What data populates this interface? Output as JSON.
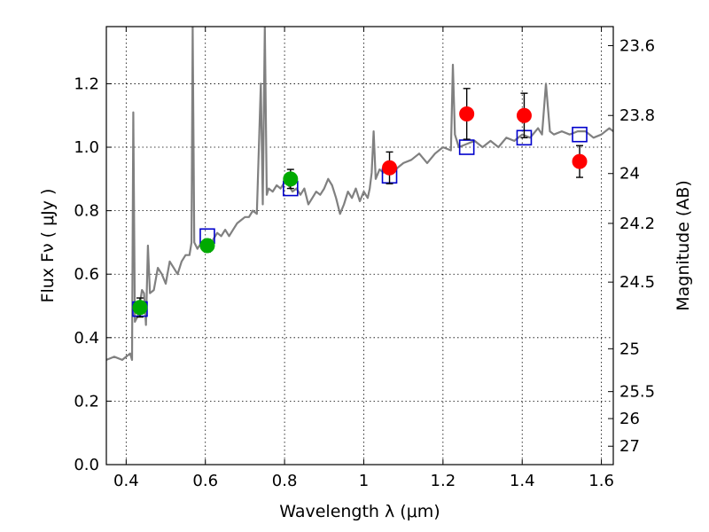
{
  "chart_data": {
    "type": "scatter",
    "xlabel": "Wavelength  λ (μm)",
    "ylabel": "Flux  Fν  ( μJy )",
    "y2label": "Magnitude (AB)",
    "xlim": [
      0.35,
      1.63
    ],
    "ylim": [
      0.0,
      1.38
    ],
    "grid": true,
    "x_ticks": [
      0.4,
      0.6,
      0.8,
      1.0,
      1.2,
      1.4,
      1.6
    ],
    "x_tick_labels": [
      "0.4",
      "0.6",
      "0.8",
      "1",
      "1.2",
      "1.4",
      "1.6"
    ],
    "y_ticks": [
      0.0,
      0.2,
      0.4,
      0.6,
      0.8,
      1.0,
      1.2
    ],
    "y_tick_labels": [
      "0.0",
      "0.2",
      "0.4",
      "0.6",
      "0.8",
      "1.0",
      "1.2"
    ],
    "right_axis": {
      "ticks": [
        {
          "label": "23.6",
          "flux": 1.32
        },
        {
          "label": "23.8",
          "flux": 1.1
        },
        {
          "label": "24",
          "flux": 0.917
        },
        {
          "label": "24.2",
          "flux": 0.76
        },
        {
          "label": "24.5",
          "flux": 0.575
        },
        {
          "label": "25",
          "flux": 0.365
        },
        {
          "label": "25.5",
          "flux": 0.23
        },
        {
          "label": "26",
          "flux": 0.145
        },
        {
          "label": "27",
          "flux": 0.058
        }
      ]
    },
    "series": [
      {
        "kind": "line",
        "color": "#808080",
        "points": [
          [
            0.35,
            0.33
          ],
          [
            0.37,
            0.34
          ],
          [
            0.39,
            0.33
          ],
          [
            0.41,
            0.35
          ],
          [
            0.415,
            0.33
          ],
          [
            0.418,
            1.11
          ],
          [
            0.422,
            0.45
          ],
          [
            0.43,
            0.47
          ],
          [
            0.44,
            0.55
          ],
          [
            0.445,
            0.54
          ],
          [
            0.45,
            0.44
          ],
          [
            0.455,
            0.69
          ],
          [
            0.46,
            0.54
          ],
          [
            0.47,
            0.55
          ],
          [
            0.48,
            0.62
          ],
          [
            0.49,
            0.6
          ],
          [
            0.5,
            0.57
          ],
          [
            0.51,
            0.64
          ],
          [
            0.52,
            0.62
          ],
          [
            0.53,
            0.6
          ],
          [
            0.54,
            0.64
          ],
          [
            0.55,
            0.66
          ],
          [
            0.56,
            0.66
          ],
          [
            0.565,
            0.7
          ],
          [
            0.568,
            1.38
          ],
          [
            0.572,
            0.7
          ],
          [
            0.58,
            0.68
          ],
          [
            0.59,
            0.7
          ],
          [
            0.6,
            0.7
          ],
          [
            0.61,
            0.68
          ],
          [
            0.62,
            0.71
          ],
          [
            0.63,
            0.73
          ],
          [
            0.64,
            0.72
          ],
          [
            0.65,
            0.74
          ],
          [
            0.66,
            0.72
          ],
          [
            0.67,
            0.74
          ],
          [
            0.68,
            0.76
          ],
          [
            0.69,
            0.77
          ],
          [
            0.7,
            0.78
          ],
          [
            0.71,
            0.78
          ],
          [
            0.72,
            0.8
          ],
          [
            0.73,
            0.79
          ],
          [
            0.74,
            1.2
          ],
          [
            0.745,
            0.82
          ],
          [
            0.75,
            1.38
          ],
          [
            0.755,
            0.85
          ],
          [
            0.76,
            0.87
          ],
          [
            0.77,
            0.86
          ],
          [
            0.78,
            0.88
          ],
          [
            0.79,
            0.87
          ],
          [
            0.8,
            0.89
          ],
          [
            0.81,
            0.88
          ],
          [
            0.82,
            0.86
          ],
          [
            0.83,
            0.87
          ],
          [
            0.84,
            0.85
          ],
          [
            0.85,
            0.87
          ],
          [
            0.86,
            0.82
          ],
          [
            0.87,
            0.84
          ],
          [
            0.88,
            0.86
          ],
          [
            0.89,
            0.85
          ],
          [
            0.9,
            0.87
          ],
          [
            0.91,
            0.9
          ],
          [
            0.92,
            0.88
          ],
          [
            0.93,
            0.84
          ],
          [
            0.94,
            0.79
          ],
          [
            0.95,
            0.82
          ],
          [
            0.96,
            0.86
          ],
          [
            0.97,
            0.84
          ],
          [
            0.98,
            0.87
          ],
          [
            0.99,
            0.83
          ],
          [
            1.0,
            0.86
          ],
          [
            1.01,
            0.84
          ],
          [
            1.015,
            0.87
          ],
          [
            1.02,
            0.92
          ],
          [
            1.025,
            1.05
          ],
          [
            1.03,
            0.9
          ],
          [
            1.04,
            0.93
          ],
          [
            1.05,
            0.92
          ],
          [
            1.06,
            0.94
          ],
          [
            1.08,
            0.93
          ],
          [
            1.1,
            0.95
          ],
          [
            1.12,
            0.96
          ],
          [
            1.14,
            0.98
          ],
          [
            1.16,
            0.95
          ],
          [
            1.18,
            0.98
          ],
          [
            1.2,
            1.0
          ],
          [
            1.22,
            0.99
          ],
          [
            1.225,
            1.26
          ],
          [
            1.23,
            1.04
          ],
          [
            1.24,
            1.0
          ],
          [
            1.26,
            1.01
          ],
          [
            1.28,
            1.02
          ],
          [
            1.3,
            1.0
          ],
          [
            1.32,
            1.02
          ],
          [
            1.34,
            1.0
          ],
          [
            1.36,
            1.03
          ],
          [
            1.38,
            1.02
          ],
          [
            1.4,
            1.04
          ],
          [
            1.42,
            1.03
          ],
          [
            1.44,
            1.06
          ],
          [
            1.45,
            1.04
          ],
          [
            1.46,
            1.2
          ],
          [
            1.47,
            1.05
          ],
          [
            1.48,
            1.04
          ],
          [
            1.5,
            1.05
          ],
          [
            1.52,
            1.04
          ],
          [
            1.54,
            1.05
          ],
          [
            1.56,
            1.05
          ],
          [
            1.58,
            1.03
          ],
          [
            1.6,
            1.04
          ],
          [
            1.62,
            1.06
          ],
          [
            1.63,
            1.05
          ]
        ]
      },
      {
        "kind": "points",
        "marker": "square",
        "color": "#0000cc",
        "points": [
          [
            0.435,
            0.49
          ],
          [
            0.605,
            0.72
          ],
          [
            0.815,
            0.87
          ],
          [
            1.065,
            0.91
          ],
          [
            1.26,
            1.0
          ],
          [
            1.405,
            1.03
          ],
          [
            1.545,
            1.04
          ]
        ]
      },
      {
        "kind": "points",
        "marker": "circle",
        "color": "#00aa00",
        "points": [
          [
            0.435,
            0.495
          ],
          [
            0.605,
            0.69
          ],
          [
            0.815,
            0.9
          ]
        ],
        "errors": [
          0.03,
          0.02,
          0.03
        ]
      },
      {
        "kind": "points",
        "marker": "circle",
        "color": "#ff0000",
        "points": [
          [
            1.065,
            0.935
          ],
          [
            1.26,
            1.105
          ],
          [
            1.405,
            1.1
          ],
          [
            1.545,
            0.955
          ]
        ],
        "errors": [
          0.05,
          0.08,
          0.07,
          0.05
        ]
      }
    ]
  }
}
